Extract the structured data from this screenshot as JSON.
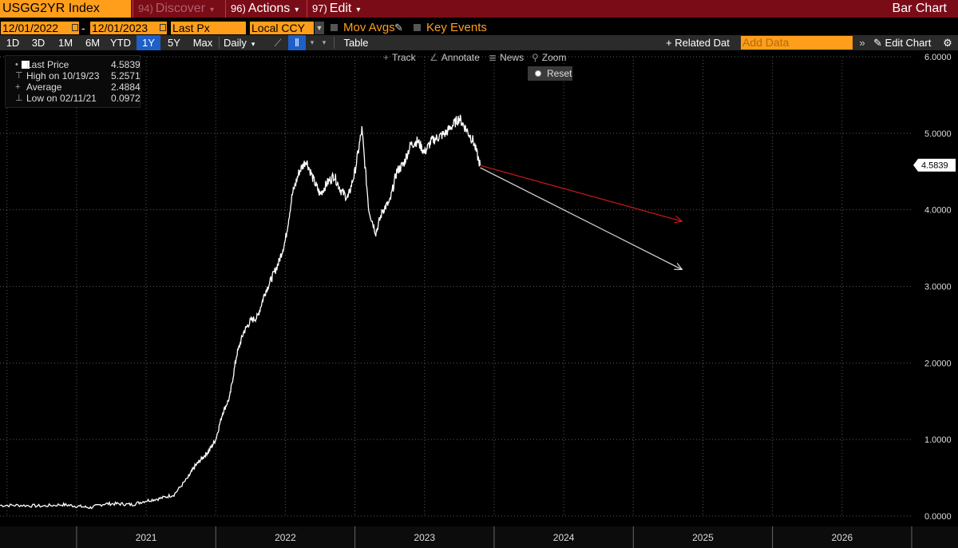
{
  "topbar": {
    "ticker": "USGG2YR Index",
    "menus": [
      {
        "num": "94)",
        "label": "Discover",
        "dim": true
      },
      {
        "num": "96)",
        "label": "Actions",
        "dim": false
      },
      {
        "num": "97)",
        "label": "Edit",
        "dim": false
      }
    ],
    "title": "Bar Chart"
  },
  "controls": {
    "start_date": "12/01/2022",
    "end_date": "12/01/2023",
    "dash": "-",
    "field": "Last Px",
    "currency": "Local CCY",
    "mov_avgs": "Mov Avgs",
    "key_events": "Key Events"
  },
  "ranges": {
    "buttons": [
      "1D",
      "3D",
      "1M",
      "6M",
      "YTD",
      "1Y",
      "5Y",
      "Max"
    ],
    "active": "1Y",
    "frequency": "Daily",
    "table": "Table",
    "related": "+ Related Dat",
    "add_data_placeholder": "Add Data",
    "edit_chart": "Edit Chart"
  },
  "tools": {
    "track": "Track",
    "annotate": "Annotate",
    "news": "News",
    "zoom": "Zoom",
    "reset": "Reset"
  },
  "legend": {
    "last_label": "Last Price",
    "last_value": "4.5839",
    "high_label": "High on 10/19/23",
    "high_value": "5.2571",
    "avg_label": "Average",
    "avg_value": "2.4884",
    "low_label": "Low on 02/11/21",
    "low_value": "0.0972"
  },
  "colors": {
    "accent": "#ff9e1b",
    "topbar": "#7a0c17",
    "line": "#ffffff",
    "arrow_red": "#cc1a1a",
    "arrow_white": "#dddddd"
  },
  "chart_data": {
    "type": "line",
    "ylim": [
      0,
      6
    ],
    "xlim": [
      2020.45,
      2027.0
    ],
    "y_ticks": [
      "0.0000",
      "1.0000",
      "2.0000",
      "3.0000",
      "4.0000",
      "5.0000",
      "6.0000"
    ],
    "x_labels": [
      "2021",
      "2022",
      "2023",
      "2024",
      "2025",
      "2026"
    ],
    "last_value_label": "4.5839",
    "series": [
      {
        "x": [
          2020.45,
          2020.6,
          2020.75,
          2020.9,
          2021.0,
          2021.1,
          2021.2,
          2021.3,
          2021.4,
          2021.5,
          2021.6,
          2021.7,
          2021.8,
          2021.85,
          2021.9,
          2021.95,
          2022.0,
          2022.05,
          2022.1,
          2022.15,
          2022.2,
          2022.25,
          2022.3,
          2022.35,
          2022.4,
          2022.45,
          2022.5,
          2022.55,
          2022.6,
          2022.65,
          2022.7,
          2022.75,
          2022.8,
          2022.85,
          2022.9,
          2022.95,
          2023.0,
          2023.05,
          2023.1,
          2023.15,
          2023.2,
          2023.25,
          2023.3,
          2023.35,
          2023.4,
          2023.45,
          2023.5,
          2023.55,
          2023.6,
          2023.65,
          2023.7,
          2023.75,
          2023.8,
          2023.85,
          2023.9
        ],
        "values": [
          0.14,
          0.14,
          0.13,
          0.15,
          0.13,
          0.11,
          0.16,
          0.16,
          0.15,
          0.2,
          0.23,
          0.28,
          0.5,
          0.65,
          0.75,
          0.85,
          1.0,
          1.35,
          1.55,
          2.1,
          2.4,
          2.55,
          2.6,
          2.9,
          3.1,
          3.3,
          3.6,
          4.2,
          4.5,
          4.65,
          4.4,
          4.2,
          4.35,
          4.45,
          4.25,
          4.15,
          4.5,
          5.05,
          4.0,
          3.7,
          4.0,
          4.1,
          4.5,
          4.6,
          4.85,
          4.9,
          4.75,
          4.9,
          4.95,
          5.0,
          5.1,
          5.2,
          5.05,
          4.9,
          4.58
        ]
      }
    ],
    "annotations": [
      {
        "from": [
          2023.9,
          4.58
        ],
        "to": [
          2025.35,
          3.85
        ],
        "color": "#cc1a1a"
      },
      {
        "from": [
          2023.9,
          4.55
        ],
        "to": [
          2025.35,
          3.22
        ],
        "color": "#dddddd"
      }
    ]
  }
}
